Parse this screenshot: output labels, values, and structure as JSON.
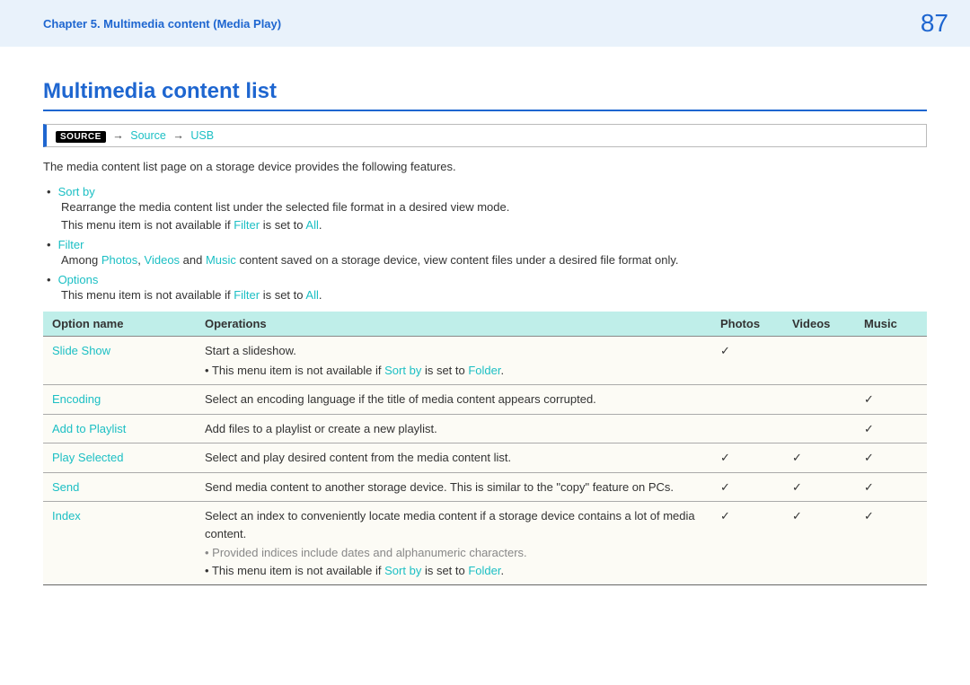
{
  "header": {
    "chapter": "Chapter 5. Multimedia content (Media Play)",
    "page": "87"
  },
  "title": "Multimedia content list",
  "nav": {
    "badge": "SOURCE",
    "step1": "Source",
    "step2": "USB",
    "arrow": "→"
  },
  "intro": "The media content list page on a storage device provides the following features.",
  "features": [
    {
      "label": "Sort by",
      "lines": [
        {
          "plain": "Rearrange the media content list under the selected file format in a desired view mode."
        },
        {
          "parts": [
            "This menu item is not available if ",
            "Filter",
            " is set to ",
            "All",
            "."
          ]
        }
      ]
    },
    {
      "label": "Filter",
      "lines": [
        {
          "parts": [
            "Among ",
            "Photos",
            ", ",
            "Videos",
            " and ",
            "Music",
            " content saved on a storage device, view content files under a desired file format only."
          ]
        }
      ]
    },
    {
      "label": "Options",
      "lines": [
        {
          "parts": [
            "This menu item is not available if ",
            "Filter",
            " is set to ",
            "All",
            "."
          ]
        }
      ]
    }
  ],
  "table": {
    "headers": {
      "option": "Option name",
      "ops": "Operations",
      "photos": "Photos",
      "videos": "Videos",
      "music": "Music"
    },
    "check_glyph": "✓",
    "rows": [
      {
        "name": "Slide Show",
        "op_main": "Start a slideshow.",
        "notes": [
          {
            "parts": [
              "This menu item is not available if ",
              "Sort by",
              " is set to ",
              "Folder",
              "."
            ],
            "grey": false
          }
        ],
        "photos": true,
        "videos": false,
        "music": false
      },
      {
        "name": "Encoding",
        "op_main": "Select an encoding language if the title of media content appears corrupted.",
        "notes": [],
        "photos": false,
        "videos": false,
        "music": true
      },
      {
        "name": "Add to Playlist",
        "op_main": "Add files to a playlist or create a new playlist.",
        "notes": [],
        "photos": false,
        "videos": false,
        "music": true
      },
      {
        "name": "Play Selected",
        "op_main": "Select and play desired content from the media content list.",
        "notes": [],
        "photos": true,
        "videos": true,
        "music": true
      },
      {
        "name": "Send",
        "op_main": "Send media content to another storage device. This is similar to the \"copy\" feature on PCs.",
        "notes": [],
        "photos": true,
        "videos": true,
        "music": true
      },
      {
        "name": "Index",
        "op_main": "Select an index to conveniently locate media content if a storage device contains a lot of media content.",
        "notes": [
          {
            "parts": [
              "Provided indices include dates and alphanumeric characters."
            ],
            "grey": true
          },
          {
            "parts": [
              "This menu item is not available if ",
              "Sort by",
              " is set to ",
              "Folder",
              "."
            ],
            "grey": false
          }
        ],
        "photos": true,
        "videos": true,
        "music": true
      }
    ]
  }
}
